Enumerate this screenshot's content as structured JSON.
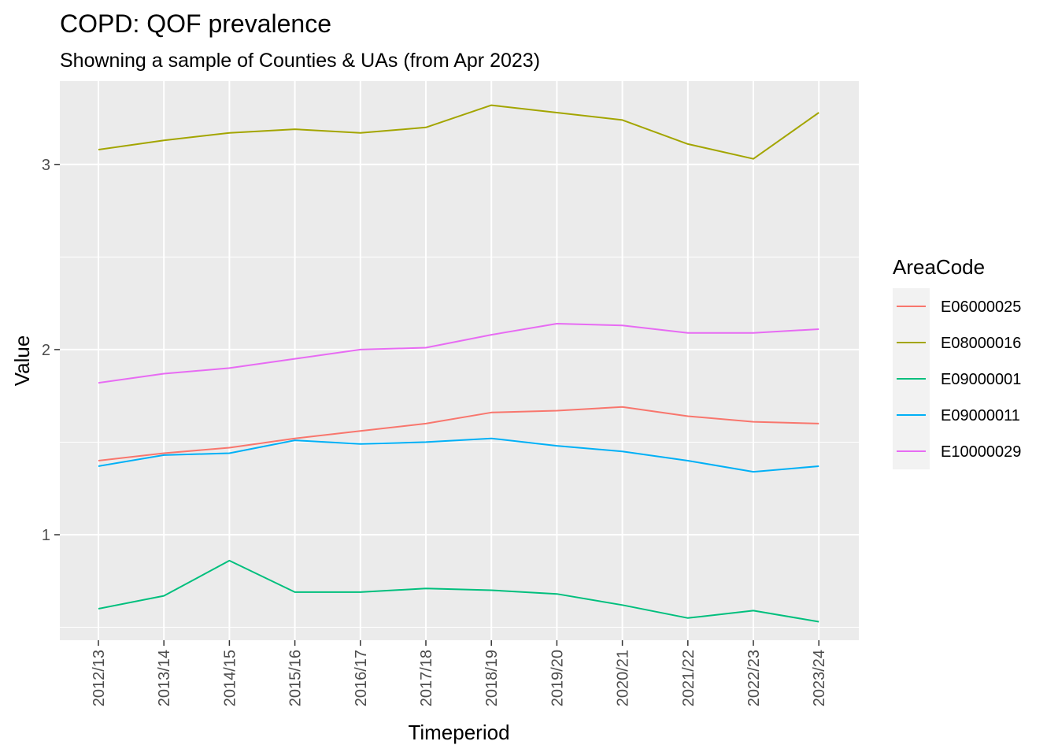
{
  "chart_data": {
    "type": "line",
    "title": "COPD: QOF prevalence",
    "subtitle": "Showning a sample of Counties & UAs (from Apr 2023)",
    "xlabel": "Timeperiod",
    "ylabel": "Value",
    "categories": [
      "2012/13",
      "2013/14",
      "2014/15",
      "2015/16",
      "2016/17",
      "2017/18",
      "2018/19",
      "2019/20",
      "2020/21",
      "2021/22",
      "2022/23",
      "2023/24"
    ],
    "ylim": [
      0.43,
      3.45
    ],
    "yticks": [
      1,
      2,
      3
    ],
    "ytick_labels": [
      "1",
      "2",
      "3"
    ],
    "grid": true,
    "legend": {
      "title": "AreaCode",
      "position": "right"
    },
    "series": [
      {
        "name": "E06000025",
        "color": "#F8766D",
        "values": [
          1.4,
          1.44,
          1.47,
          1.52,
          1.56,
          1.6,
          1.66,
          1.67,
          1.69,
          1.64,
          1.61,
          1.6
        ]
      },
      {
        "name": "E08000016",
        "color": "#A3A500",
        "values": [
          3.08,
          3.13,
          3.17,
          3.19,
          3.17,
          3.2,
          3.32,
          3.28,
          3.24,
          3.11,
          3.03,
          3.28
        ]
      },
      {
        "name": "E09000001",
        "color": "#00BF7D",
        "values": [
          0.6,
          0.67,
          0.86,
          0.69,
          0.69,
          0.71,
          0.7,
          0.68,
          0.62,
          0.55,
          0.59,
          0.53
        ]
      },
      {
        "name": "E09000011",
        "color": "#00B0F6",
        "values": [
          1.37,
          1.43,
          1.44,
          1.51,
          1.49,
          1.5,
          1.52,
          1.48,
          1.45,
          1.4,
          1.34,
          1.37
        ]
      },
      {
        "name": "E10000029",
        "color": "#E76BF3",
        "values": [
          1.82,
          1.87,
          1.9,
          1.95,
          2.0,
          2.01,
          2.08,
          2.14,
          2.13,
          2.09,
          2.09,
          2.11
        ]
      }
    ]
  }
}
